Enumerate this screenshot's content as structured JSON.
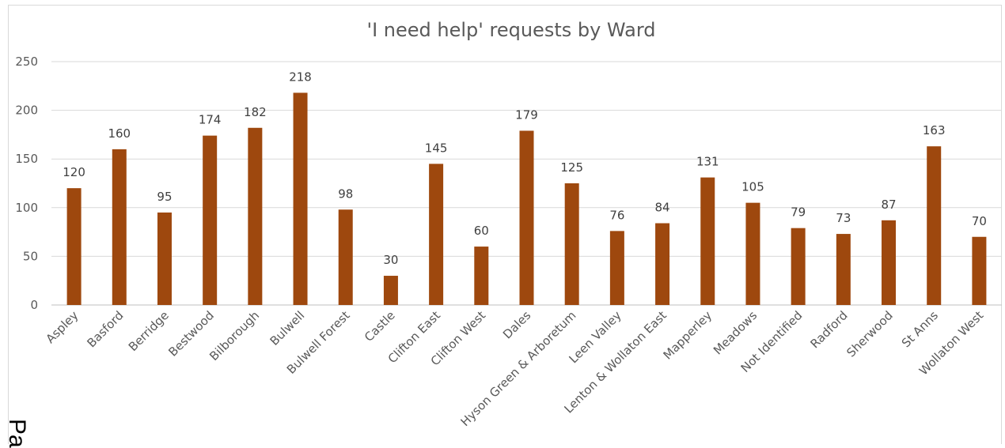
{
  "chart_data": {
    "type": "bar",
    "title": "'I need help' requests by Ward",
    "xlabel": "",
    "ylabel": "",
    "ylim": [
      0,
      250
    ],
    "yticks": [
      0,
      50,
      100,
      150,
      200,
      250
    ],
    "grid": true,
    "legend": "none",
    "bar_color": "#9E480E",
    "categories": [
      "Aspley",
      "Basford",
      "Berridge",
      "Bestwood",
      "Bilborough",
      "Bulwell",
      "Bulwell Forest",
      "Castle",
      "Clifton East",
      "Clifton West",
      "Dales",
      "Hyson Green & Arboretum",
      "Leen Valley",
      "Lenton & Wollaton East",
      "Mapperley",
      "Meadows",
      "Not Identified",
      "Radford",
      "Sherwood",
      "St Anns",
      "Wollaton West"
    ],
    "values": [
      120,
      160,
      95,
      174,
      182,
      218,
      98,
      30,
      145,
      60,
      179,
      125,
      76,
      84,
      131,
      105,
      79,
      73,
      87,
      163,
      70
    ]
  },
  "page_fragment_text": "Pa"
}
